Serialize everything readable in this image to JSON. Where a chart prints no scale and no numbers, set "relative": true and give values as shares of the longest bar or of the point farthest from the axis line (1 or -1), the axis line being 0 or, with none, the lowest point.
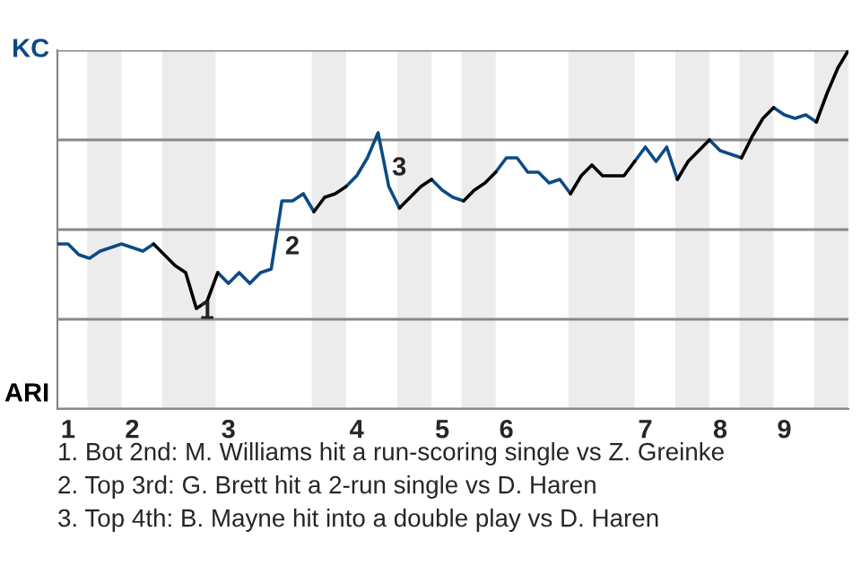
{
  "chart_data": {
    "type": "line",
    "relative": true,
    "categories": [
      null,
      "1",
      null,
      null,
      null,
      null,
      null,
      "2",
      null,
      null,
      null,
      null,
      null,
      null,
      null,
      null,
      "3",
      null,
      null,
      null,
      null,
      null,
      null,
      null,
      null,
      null,
      null,
      null,
      "4",
      null,
      null,
      null,
      null,
      null,
      null,
      null,
      "5",
      null,
      null,
      null,
      null,
      null,
      "6",
      null,
      null,
      null,
      null,
      null,
      null,
      null,
      null,
      null,
      null,
      null,
      null,
      "7",
      null,
      null,
      null,
      null,
      null,
      null,
      "8",
      null,
      null,
      null,
      null,
      null,
      "9",
      null,
      null,
      null,
      null,
      null,
      null
    ],
    "grid": "y",
    "marker": "none",
    "line_style": "solid",
    "series": [
      {
        "color": "#0d4a85",
        "values": [
          0.46,
          0.46,
          0.43,
          0.42,
          0.44,
          0.45,
          0.46,
          0.45,
          0.44,
          0.46,
          null,
          null,
          null,
          null,
          null,
          0.38,
          0.35,
          0.38,
          0.35,
          0.38,
          0.39,
          0.58,
          0.58,
          0.6,
          0.55,
          null,
          null,
          0.62,
          0.65,
          0.7,
          0.77,
          0.62,
          0.56,
          null,
          null,
          0.64,
          0.61,
          0.59,
          0.58,
          null,
          null,
          0.66,
          0.7,
          0.7,
          0.66,
          0.66,
          0.63,
          0.64,
          0.6,
          null,
          null,
          null,
          null,
          null,
          0.69,
          0.73,
          0.69,
          0.73,
          0.64,
          null,
          null,
          0.75,
          0.72,
          0.71,
          0.7,
          null,
          null,
          0.84,
          0.82,
          0.81,
          0.82,
          0.8,
          null,
          null,
          null
        ]
      },
      {
        "color": "#000000",
        "values": [
          null,
          null,
          null,
          null,
          null,
          null,
          null,
          null,
          null,
          0.46,
          0.43,
          0.4,
          0.38,
          0.28,
          0.3,
          0.38,
          null,
          null,
          null,
          null,
          null,
          null,
          null,
          null,
          0.55,
          0.59,
          0.6,
          0.62,
          null,
          null,
          null,
          null,
          0.56,
          0.59,
          0.62,
          0.64,
          null,
          null,
          0.58,
          0.61,
          0.63,
          0.66,
          null,
          null,
          null,
          null,
          null,
          null,
          0.6,
          0.65,
          0.68,
          0.65,
          0.65,
          0.65,
          0.69,
          null,
          null,
          null,
          0.64,
          0.69,
          0.72,
          0.75,
          null,
          null,
          0.7,
          0.76,
          0.81,
          0.84,
          null,
          null,
          null,
          0.8,
          0.88,
          0.95,
          1.0
        ]
      }
    ],
    "annotations": [
      "KC",
      "ARI",
      "1",
      "2",
      "3",
      "1. Bot 2nd: M. Williams hit a run-scoring single vs Z. Greinke",
      "2. Top 3rd: G. Brett hit a 2-run single vs D. Haren",
      "3. Top 4th: B. Mayne hit into a double play vs D. Haren"
    ]
  }
}
